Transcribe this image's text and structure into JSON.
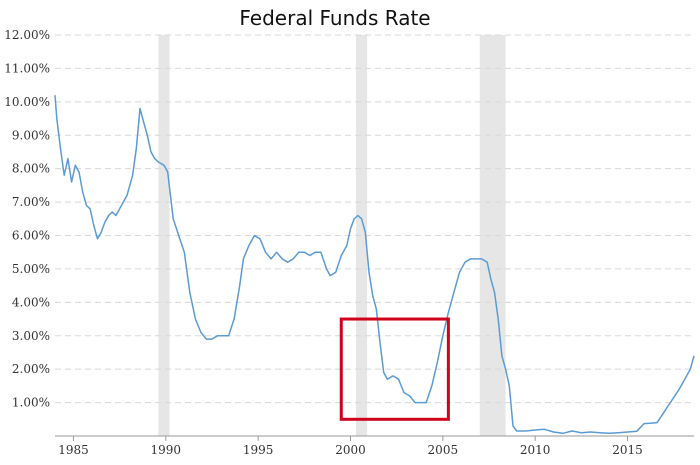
{
  "chart_data": {
    "type": "line",
    "title": "Federal Funds Rate",
    "xlabel": "",
    "ylabel": "",
    "ylim": [
      0,
      12
    ],
    "xlim": [
      1984.0,
      2018.6
    ],
    "grid": true,
    "y_ticks": [
      {
        "value": 1,
        "label": "1.00%"
      },
      {
        "value": 2,
        "label": "2.00%"
      },
      {
        "value": 3,
        "label": "3.00%"
      },
      {
        "value": 4,
        "label": "4.00%"
      },
      {
        "value": 5,
        "label": "5.00%"
      },
      {
        "value": 6,
        "label": "6.00%"
      },
      {
        "value": 7,
        "label": "7.00%"
      },
      {
        "value": 8,
        "label": "8.00%"
      },
      {
        "value": 9,
        "label": "9.00%"
      },
      {
        "value": 10,
        "label": "10.00%"
      },
      {
        "value": 11,
        "label": "11.00%"
      },
      {
        "value": 12,
        "label": "12.00%"
      }
    ],
    "x_ticks": [
      {
        "value": 1985,
        "label": "1985"
      },
      {
        "value": 1990,
        "label": "1990"
      },
      {
        "value": 1995,
        "label": "1995"
      },
      {
        "value": 2000,
        "label": "2000"
      },
      {
        "value": 2005,
        "label": "2005"
      },
      {
        "value": 2010,
        "label": "2010"
      },
      {
        "value": 2015,
        "label": "2015"
      }
    ],
    "recessions": [
      {
        "start": 1989.6,
        "end": 1990.2
      },
      {
        "start": 2000.3,
        "end": 2000.9
      },
      {
        "start": 2007.0,
        "end": 2008.4
      }
    ],
    "highlight_box": {
      "x0": 1999.5,
      "x1": 2005.3,
      "y0": 0.5,
      "y1": 3.5,
      "color": "#d0021b"
    },
    "series": [
      {
        "color": "#5b9bd5",
        "x": [
          1984.0,
          1984.1,
          1984.3,
          1984.5,
          1984.7,
          1984.9,
          1985.1,
          1985.3,
          1985.5,
          1985.7,
          1985.9,
          1986.1,
          1986.3,
          1986.5,
          1986.7,
          1986.9,
          1987.1,
          1987.3,
          1987.6,
          1987.9,
          1988.2,
          1988.4,
          1988.6,
          1988.8,
          1989.0,
          1989.2,
          1989.4,
          1989.6,
          1989.9,
          1990.1,
          1990.4,
          1990.7,
          1991.0,
          1991.3,
          1991.6,
          1991.9,
          1992.2,
          1992.5,
          1992.8,
          1993.1,
          1993.4,
          1993.7,
          1994.0,
          1994.2,
          1994.5,
          1994.8,
          1995.1,
          1995.4,
          1995.7,
          1996.0,
          1996.3,
          1996.6,
          1996.9,
          1997.2,
          1997.5,
          1997.8,
          1998.1,
          1998.4,
          1998.7,
          1998.9,
          1999.2,
          1999.5,
          1999.8,
          2000.0,
          2000.2,
          2000.4,
          2000.6,
          2000.8,
          2001.0,
          2001.2,
          2001.4,
          2001.6,
          2001.8,
          2002.0,
          2002.3,
          2002.6,
          2002.9,
          2003.2,
          2003.5,
          2003.8,
          2004.1,
          2004.4,
          2004.7,
          2005.0,
          2005.3,
          2005.6,
          2005.9,
          2006.2,
          2006.5,
          2006.8,
          2007.1,
          2007.4,
          2007.6,
          2007.8,
          2008.0,
          2008.2,
          2008.4,
          2008.6,
          2008.8,
          2009.0,
          2009.5,
          2010.0,
          2010.5,
          2011.0,
          2011.5,
          2012.0,
          2012.5,
          2013.0,
          2013.5,
          2014.0,
          2014.5,
          2015.0,
          2015.5,
          2015.9,
          2016.2,
          2016.6,
          2016.9,
          2017.2,
          2017.5,
          2017.8,
          2018.1,
          2018.4,
          2018.6
        ],
        "values": [
          10.2,
          9.5,
          8.6,
          7.8,
          8.3,
          7.6,
          8.1,
          7.9,
          7.3,
          6.9,
          6.8,
          6.3,
          5.9,
          6.1,
          6.4,
          6.6,
          6.7,
          6.6,
          6.9,
          7.2,
          7.8,
          8.6,
          9.8,
          9.4,
          9.0,
          8.5,
          8.3,
          8.2,
          8.1,
          7.9,
          6.5,
          6.0,
          5.5,
          4.3,
          3.5,
          3.1,
          2.9,
          2.9,
          3.0,
          3.0,
          3.0,
          3.5,
          4.5,
          5.3,
          5.7,
          6.0,
          5.9,
          5.5,
          5.3,
          5.5,
          5.3,
          5.2,
          5.3,
          5.5,
          5.5,
          5.4,
          5.5,
          5.5,
          5.0,
          4.8,
          4.9,
          5.4,
          5.7,
          6.2,
          6.5,
          6.6,
          6.5,
          6.1,
          4.9,
          4.2,
          3.8,
          2.8,
          1.9,
          1.7,
          1.8,
          1.7,
          1.3,
          1.2,
          1.0,
          1.0,
          1.0,
          1.5,
          2.2,
          3.0,
          3.7,
          4.3,
          4.9,
          5.2,
          5.3,
          5.3,
          5.3,
          5.2,
          4.7,
          4.3,
          3.5,
          2.4,
          2.0,
          1.5,
          0.3,
          0.15,
          0.15,
          0.18,
          0.2,
          0.12,
          0.08,
          0.15,
          0.1,
          0.12,
          0.1,
          0.08,
          0.1,
          0.12,
          0.14,
          0.37,
          0.38,
          0.4,
          0.65,
          0.9,
          1.15,
          1.4,
          1.7,
          2.0,
          2.4
        ]
      }
    ]
  }
}
